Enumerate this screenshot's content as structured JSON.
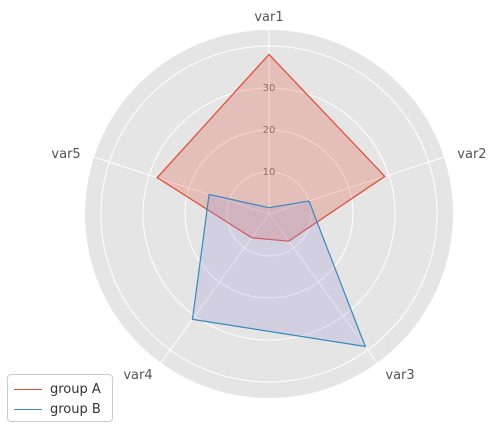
{
  "chart_data": {
    "type": "radar",
    "categories": [
      "var1",
      "var2",
      "var3",
      "var4",
      "var5"
    ],
    "series": [
      {
        "name": "group A",
        "values": [
          38,
          29,
          8,
          7,
          28
        ],
        "color": "#E24A33",
        "fill": "#E24A33"
      },
      {
        "name": "group B",
        "values": [
          1.5,
          10,
          39,
          31,
          15
        ],
        "color": "#348ABD",
        "fill": "#988ED5"
      }
    ],
    "rlim": [
      0,
      40
    ],
    "rticks": [
      10,
      20,
      30
    ],
    "grid": true,
    "background": "#E5E5E5",
    "legend_position": "bottom-left"
  }
}
